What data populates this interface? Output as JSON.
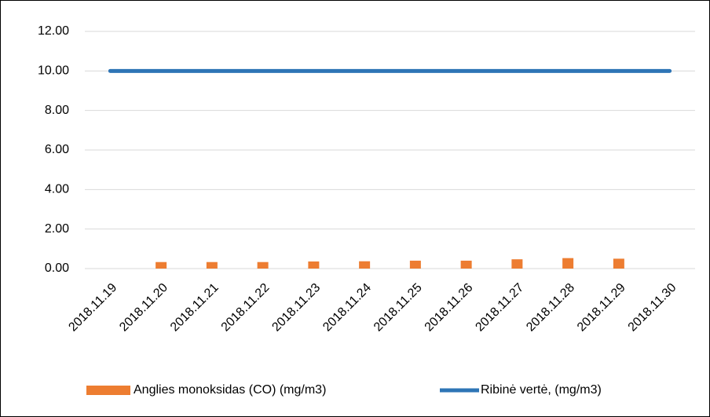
{
  "chart_data": {
    "type": "bar_line",
    "categories": [
      "2018.11.19",
      "2018.11.20",
      "2018.11.21",
      "2018.11.22",
      "2018.11.23",
      "2018.11.24",
      "2018.11.25",
      "2018.11.26",
      "2018.11.27",
      "2018.11.28",
      "2018.11.29",
      "2018.11.30"
    ],
    "series": [
      {
        "name": "Anglies monoksidas (CO) (mg/m3)",
        "type": "bar",
        "color": "#ed7d31",
        "values": [
          null,
          0.33,
          0.33,
          0.33,
          0.36,
          0.37,
          0.4,
          0.4,
          0.47,
          0.53,
          0.5,
          null
        ]
      },
      {
        "name": "Ribinė vertė, (mg/m3)",
        "type": "line",
        "color": "#2e75b6",
        "values": [
          10,
          10,
          10,
          10,
          10,
          10,
          10,
          10,
          10,
          10,
          10,
          10
        ]
      }
    ],
    "ylim": [
      0,
      12
    ],
    "yticks": [
      {
        "value": 0,
        "label": "0.00"
      },
      {
        "value": 2,
        "label": "2.00"
      },
      {
        "value": 4,
        "label": "4.00"
      },
      {
        "value": 6,
        "label": "6.00"
      },
      {
        "value": 8,
        "label": "8.00"
      },
      {
        "value": 10,
        "label": "10.00"
      },
      {
        "value": 12,
        "label": "12.00"
      }
    ],
    "grid": true,
    "legend": "bottom"
  }
}
